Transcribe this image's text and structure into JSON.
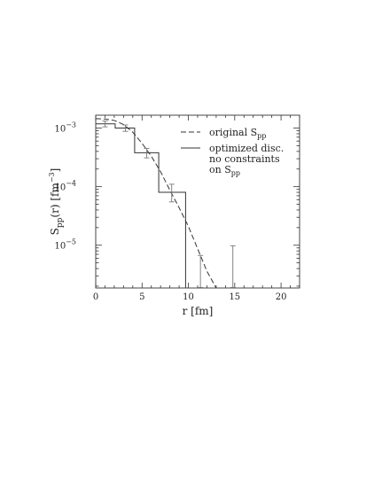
{
  "chart_data": {
    "type": "line",
    "title": "",
    "xlabel": "r [fm]",
    "ylabel": {
      "base": "S",
      "sub": "pp",
      "mid": "(r) [fm",
      "sup": "−3",
      "end": "]"
    },
    "xlim": [
      0,
      22
    ],
    "ylim_log10": [
      -5.73,
      -2.78
    ],
    "y_scale": "log",
    "x_ticks": [
      0,
      5,
      10,
      15,
      20
    ],
    "x_tick_labels": [
      "0",
      "5",
      "10",
      "15",
      "20"
    ],
    "y_ticks": [
      {
        "exp": -3,
        "label": "10",
        "sup": "−3"
      },
      {
        "exp": -4,
        "label": "10",
        "sup": "−4"
      },
      {
        "exp": -5,
        "label": "10",
        "sup": "−5"
      }
    ],
    "grid": false,
    "legend_position": "top-right",
    "series": [
      {
        "kind": "dashed-curve",
        "legend_lines": [
          {
            "text": "original S",
            "sub": "pp"
          }
        ],
        "x": [
          0,
          1,
          2,
          3,
          4,
          5,
          6,
          7,
          8,
          9,
          10,
          11,
          12,
          13
        ],
        "y": [
          0.00145,
          0.00143,
          0.00135,
          0.00115,
          0.00085,
          0.00055,
          0.00033,
          0.00018,
          8.73e-05,
          4.37e-05,
          2.1e-05,
          8.7e-06,
          3.6e-06,
          1.6e-06
        ]
      },
      {
        "kind": "histogram",
        "legend_lines": [
          {
            "text": "optimized disc."
          },
          {
            "text": "no constraints"
          },
          {
            "text": "on S",
            "sub": "pp"
          }
        ],
        "bins": [
          {
            "x0": 0.0,
            "x1": 2.1,
            "y": 0.00118
          },
          {
            "x0": 2.1,
            "x1": 4.2,
            "y": 0.001
          },
          {
            "x0": 4.2,
            "x1": 6.8,
            "y": 0.00038
          },
          {
            "x0": 6.8,
            "x1": 9.7,
            "y": 8e-05
          }
        ],
        "drop_to_bottom_at": 9.7,
        "error_bars": [
          {
            "x": 1.0,
            "y": 0.00118,
            "lo": 0.00105,
            "hi": 0.00132
          },
          {
            "x": 3.2,
            "y": 0.001,
            "lo": 0.00088,
            "hi": 0.00113
          },
          {
            "x": 5.5,
            "y": 0.00038,
            "lo": 0.00031,
            "hi": 0.00045
          },
          {
            "x": 8.2,
            "y": 8e-05,
            "lo": 5.5e-05,
            "hi": 0.00011
          },
          {
            "x": 11.3,
            "y": 2e-06,
            "lo": 1.9e-06,
            "hi": 6.7e-06
          },
          {
            "x": 14.8,
            "y": 2e-06,
            "lo": 1.9e-06,
            "hi": 9.8e-06
          }
        ]
      }
    ]
  }
}
